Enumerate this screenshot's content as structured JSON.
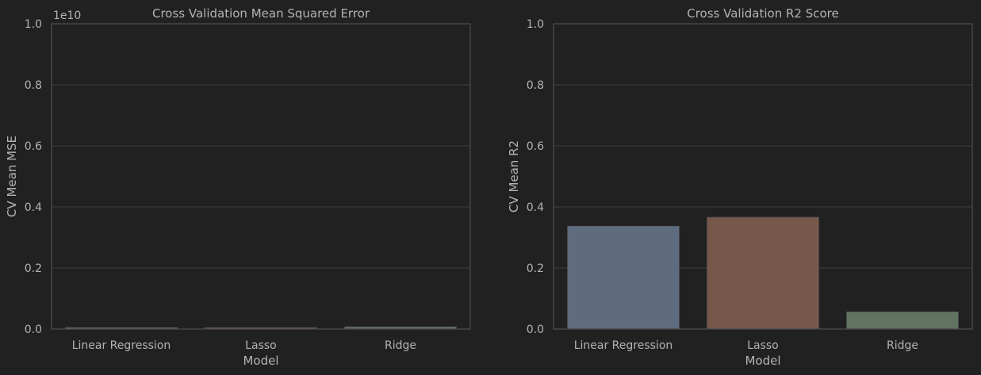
{
  "chart_data": [
    {
      "type": "bar",
      "title": "Cross Validation Mean Squared Error",
      "xlabel": "Model",
      "ylabel": "CV Mean MSE",
      "categories": [
        "Linear Regression",
        "Lasso",
        "Ridge"
      ],
      "values": [
        45000000,
        42000000,
        70000000
      ],
      "colors": [
        "#5f6c80",
        "#76584b",
        "#627362"
      ],
      "ylim": [
        0,
        1.0
      ],
      "y_scale_label": "1e10",
      "y_scale_factor": 10000000000,
      "yticks": [
        "0.0",
        "0.2",
        "0.4",
        "0.6",
        "0.8",
        "1.0"
      ],
      "grid": true
    },
    {
      "type": "bar",
      "title": "Cross Validation R2 Score",
      "xlabel": "Model",
      "ylabel": "CV Mean R2",
      "categories": [
        "Linear Regression",
        "Lasso",
        "Ridge"
      ],
      "values": [
        0.337,
        0.366,
        0.056
      ],
      "colors": [
        "#5f6c80",
        "#76584b",
        "#627362"
      ],
      "ylim": [
        0,
        1.0
      ],
      "yticks": [
        "0.0",
        "0.2",
        "0.4",
        "0.6",
        "0.8",
        "1.0"
      ],
      "grid": true
    }
  ]
}
